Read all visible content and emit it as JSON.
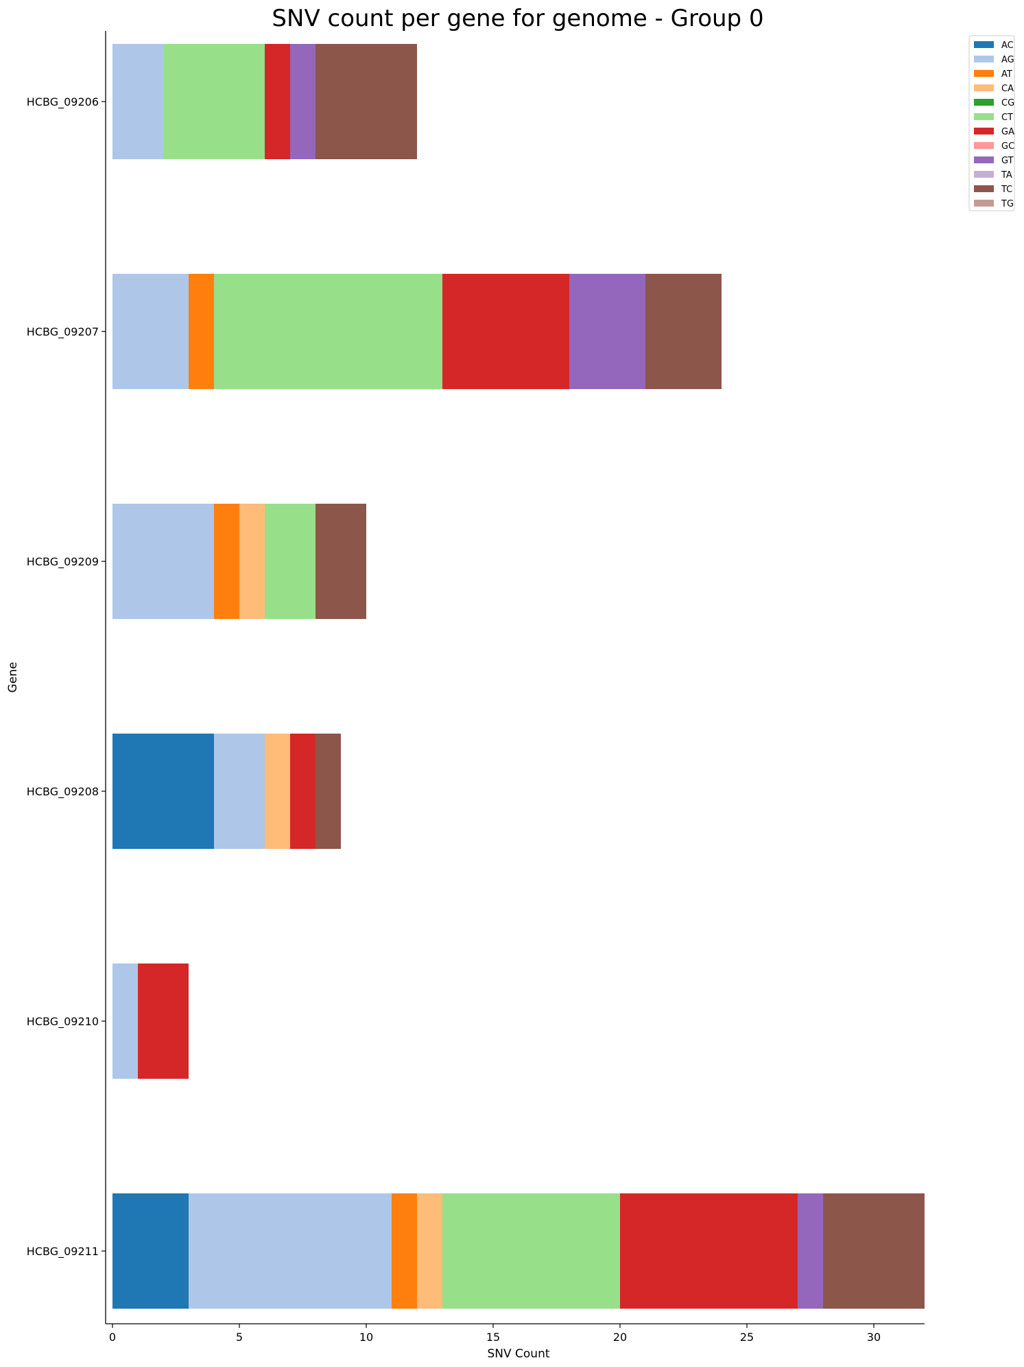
{
  "chart_data": {
    "type": "bar",
    "orientation": "horizontal",
    "stacked": true,
    "title": "SNV count per gene for genome - Group 0",
    "xlabel": "SNV Count",
    "ylabel": "Gene",
    "xlim": [
      0,
      32
    ],
    "xticks": [
      0,
      5,
      10,
      15,
      20,
      25,
      30
    ],
    "grid": false,
    "legend_position": "top-right",
    "categories": [
      "HCBG_09206",
      "HCBG_09207",
      "HCBG_09209",
      "HCBG_09208",
      "HCBG_09210",
      "HCBG_09211"
    ],
    "series": [
      {
        "name": "AC",
        "color": "#1f77b4",
        "values": [
          0,
          0,
          0,
          4,
          0,
          3
        ]
      },
      {
        "name": "AG",
        "color": "#aec7e8",
        "values": [
          2,
          3,
          4,
          2,
          1,
          8
        ]
      },
      {
        "name": "AT",
        "color": "#ff7f0e",
        "values": [
          0,
          1,
          1,
          0,
          0,
          1
        ]
      },
      {
        "name": "CA",
        "color": "#ffbb78",
        "values": [
          0,
          0,
          1,
          1,
          0,
          1
        ]
      },
      {
        "name": "CG",
        "color": "#2ca02c",
        "values": [
          0,
          0,
          0,
          0,
          0,
          0
        ]
      },
      {
        "name": "CT",
        "color": "#98df8a",
        "values": [
          4,
          9,
          2,
          0,
          0,
          7
        ]
      },
      {
        "name": "GA",
        "color": "#d62728",
        "values": [
          1,
          5,
          0,
          1,
          2,
          7
        ]
      },
      {
        "name": "GC",
        "color": "#ff9896",
        "values": [
          0,
          0,
          0,
          0,
          0,
          0
        ]
      },
      {
        "name": "GT",
        "color": "#9467bd",
        "values": [
          1,
          3,
          0,
          0,
          0,
          1
        ]
      },
      {
        "name": "TA",
        "color": "#c5b0d5",
        "values": [
          0,
          0,
          0,
          0,
          0,
          0
        ]
      },
      {
        "name": "TC",
        "color": "#8c564b",
        "values": [
          4,
          3,
          2,
          1,
          0,
          4
        ]
      },
      {
        "name": "TG",
        "color": "#c49c94",
        "values": [
          0,
          0,
          0,
          0,
          0,
          0
        ]
      }
    ]
  }
}
